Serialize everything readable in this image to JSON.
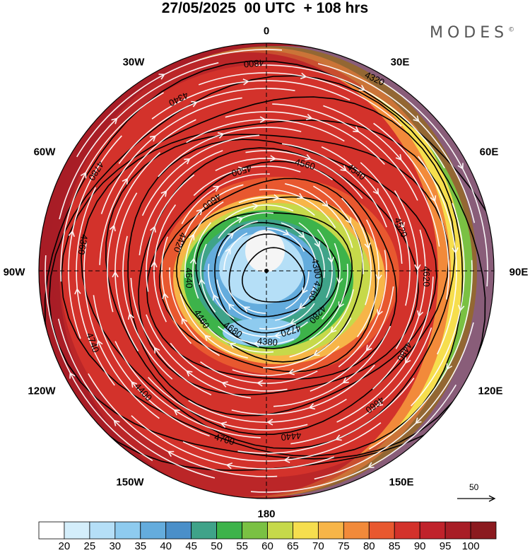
{
  "title": "27/05/2025  00 UTC  + 108 hrs",
  "brand": {
    "name": "MODES",
    "mark": "©"
  },
  "longitude_labels": [
    {
      "id": "0",
      "text": "0"
    },
    {
      "id": "30e",
      "text": "30E"
    },
    {
      "id": "60e",
      "text": "60E"
    },
    {
      "id": "90e",
      "text": "90E"
    },
    {
      "id": "120e",
      "text": "120E"
    },
    {
      "id": "150e",
      "text": "150E"
    },
    {
      "id": "180",
      "text": "180"
    },
    {
      "id": "150w",
      "text": "150W"
    },
    {
      "id": "120w",
      "text": "120W"
    },
    {
      "id": "90w",
      "text": "90W"
    },
    {
      "id": "60w",
      "text": "60W"
    },
    {
      "id": "30w",
      "text": "30W"
    }
  ],
  "reference_vector": {
    "value": "50"
  },
  "colorbar": {
    "labels": [
      "20",
      "25",
      "30",
      "35",
      "40",
      "45",
      "50",
      "55",
      "60",
      "65",
      "70",
      "75",
      "80",
      "85",
      "90",
      "95",
      "100"
    ],
    "colors": [
      "#ffffff",
      "#d4eefb",
      "#b5dff7",
      "#8ecbef",
      "#64acdd",
      "#4a8fc9",
      "#3fa389",
      "#3db34a",
      "#7ac143",
      "#c6d94a",
      "#f6de4e",
      "#f7b548",
      "#f28a3a",
      "#e8582f",
      "#d3322b",
      "#c0222b",
      "#a81d26",
      "#8b1a1f"
    ]
  },
  "contour_labels": [
    "4760",
    "4720",
    "4680",
    "4640",
    "4600",
    "4560",
    "4520",
    "4480",
    "4440",
    "4400",
    "4360",
    "4340",
    "4320",
    "4300",
    "4280",
    "4380",
    "4460",
    "4420",
    "4500",
    "4540",
    "4620",
    "4660",
    "4700",
    "4740",
    "4780",
    "4800"
  ],
  "map_colors": {
    "core": "#f0f0f0",
    "inner": "#8ecbef",
    "mid": "#3db34a",
    "ring": "#c0222b",
    "band_yellow": "#f6de4e",
    "band_green": "#7ac143",
    "band_blue": "#64acdd",
    "band_cyan": "#b5dff7",
    "stream": "#ffffff",
    "contour": "#000000"
  }
}
